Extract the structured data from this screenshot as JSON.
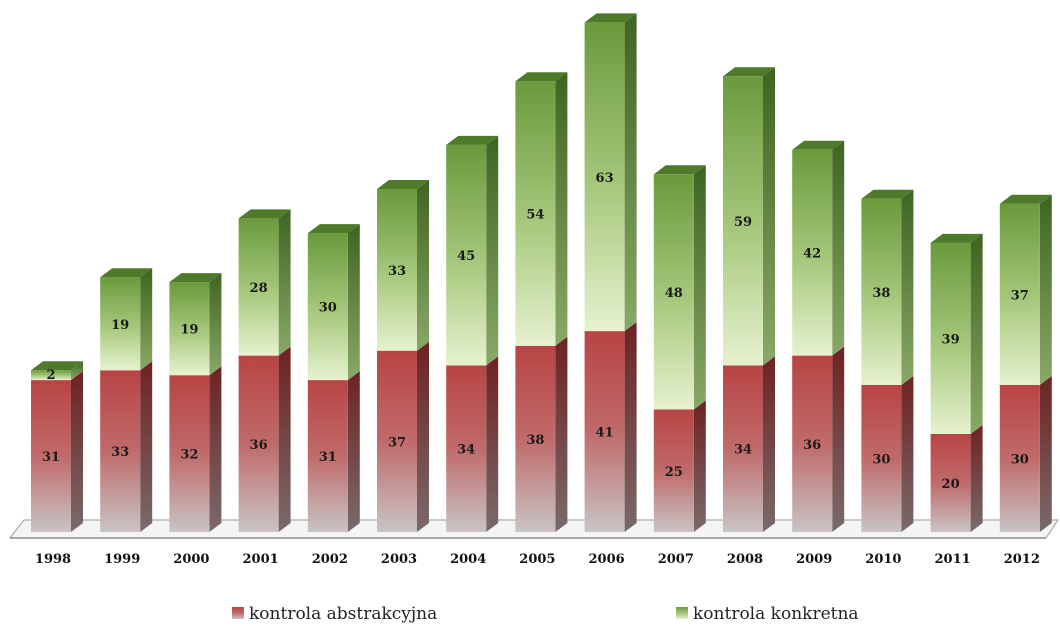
{
  "chart_data": {
    "type": "bar",
    "stacked": true,
    "three_d": true,
    "categories": [
      "1998",
      "1999",
      "2000",
      "2001",
      "2002",
      "2003",
      "2004",
      "2005",
      "2006",
      "2007",
      "2008",
      "2009",
      "2010",
      "2011",
      "2012"
    ],
    "series": [
      {
        "name": "kontrola abstrakcyjna",
        "values": [
          31,
          33,
          32,
          36,
          31,
          37,
          34,
          38,
          41,
          25,
          34,
          36,
          30,
          20,
          30
        ]
      },
      {
        "name": "kontrola konkretna",
        "values": [
          2,
          19,
          19,
          28,
          30,
          33,
          45,
          54,
          63,
          48,
          59,
          42,
          38,
          39,
          37
        ]
      }
    ],
    "title": "",
    "xlabel": "",
    "ylabel": "",
    "ylim": [
      0,
      105
    ],
    "grid": false,
    "legend_position": "bottom",
    "colors": {
      "kontrola abstrakcyjna": "#b84c4c",
      "kontrola konkretna": "#76a048"
    }
  }
}
